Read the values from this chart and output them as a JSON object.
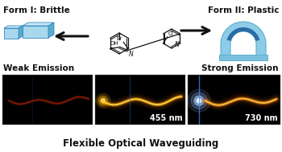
{
  "form1_label": "Form I: Brittle",
  "form2_label": "Form II: Plastic",
  "weak_emission": "Weak Emission",
  "strong_emission": "Strong Emission",
  "waveguide_title": "Flexible Optical Waveguiding",
  "nm1": "455 nm",
  "nm2": "730 nm",
  "bg_color": "#ffffff",
  "text_color": "#111111",
  "crystal_face": "#a8d8ee",
  "crystal_top": "#c8eaf8",
  "crystal_side": "#5aaad0",
  "crystal_edge": "#3388bb",
  "arch_light": "#8dcce8",
  "arch_mid": "#5aaecc",
  "arch_dark": "#1a5a9a",
  "arch_base": "#7ac0dc",
  "arrow_color": "#111111",
  "label_fontsize": 7.5,
  "title_fontsize": 8.5,
  "nm_fontsize": 7
}
